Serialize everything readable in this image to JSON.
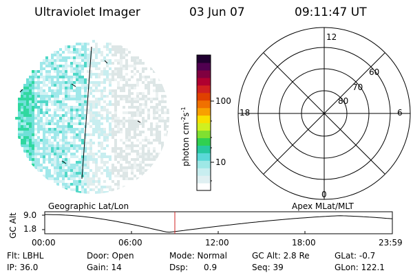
{
  "header": {
    "instrument": "Ultraviolet Imager",
    "date": "03 Jun 07",
    "time": "09:11:47 UT"
  },
  "colorbar": {
    "unit_label": "photon cm",
    "unit_exp1": "-2",
    "unit_s": "s",
    "unit_exp2": "-1",
    "tick_100": "100",
    "tick_10": "10",
    "colors": [
      "#ffffff",
      "#e0f0f2",
      "#c8eef0",
      "#9ee8e6",
      "#5ad8d8",
      "#28c8a0",
      "#30d050",
      "#80e030",
      "#d0f020",
      "#f8e000",
      "#f8a000",
      "#f07000",
      "#e04000",
      "#d02020",
      "#b00030",
      "#800040",
      "#500050",
      "#200030"
    ]
  },
  "polar": {
    "lbl_12": "12",
    "lbl_6": "6",
    "lbl_18": "18",
    "lbl_0": "0",
    "lbl_60": "60",
    "lbl_70": "70",
    "lbl_80": "80"
  },
  "timeline": {
    "left_title": "Geographic Lat/Lon",
    "right_title": "Apex  MLat/MLT",
    "axis_label": "GC Alt",
    "y_top": "9.0",
    "y_bottom": "1.8",
    "x_ticks": [
      "00:00",
      "06:00",
      "12:00",
      "18:00",
      "23:59"
    ],
    "marker_color": "#d02020"
  },
  "status": {
    "flt": "Flt: LBHL",
    "door": "Door: Open",
    "mode": "Mode: Normal",
    "gcalt": "GC Alt: 2.8 Re",
    "glat": "GLat:  -0.7",
    "ip": "IP: 36.0",
    "gain": "Gain: 14",
    "dsp": "Dsp:      0.9",
    "seq": "Seq: 39",
    "glon": "GLon: 122.1"
  }
}
